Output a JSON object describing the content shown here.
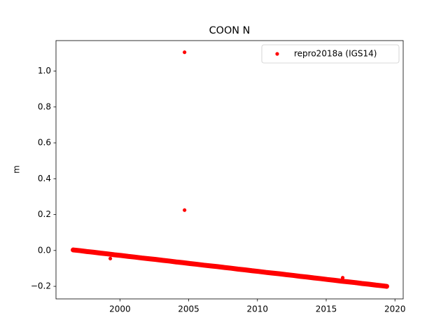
{
  "chart_data": {
    "type": "scatter",
    "title": "COON N",
    "ylabel": "m",
    "series": [
      {
        "name": "repro2018a (IGS14)",
        "color": "#ff0000",
        "x": [
          1996.6,
          1997.1,
          1997.6,
          1998.1,
          1998.6,
          1999.1,
          1999.6,
          2000.1,
          2000.6,
          2001.1,
          2001.6,
          2002.1,
          2002.6,
          2003.1,
          2003.6,
          2004.1,
          2004.6,
          2005.1,
          2005.6,
          2006.1,
          2006.6,
          2007.1,
          2007.6,
          2008.1,
          2008.6,
          2009.1,
          2009.6,
          2010.1,
          2010.6,
          2011.1,
          2011.6,
          2012.1,
          2012.6,
          2013.1,
          2013.6,
          2014.1,
          2014.6,
          2015.1,
          2015.6,
          2016.1,
          2016.6,
          2017.1,
          2017.6,
          2018.1,
          2018.6,
          2019.1,
          2019.4,
          2004.7,
          2004.7,
          1999.3,
          2016.2
        ],
        "values": [
          0.003,
          -0.001,
          -0.006,
          -0.01,
          -0.015,
          -0.019,
          -0.024,
          -0.028,
          -0.033,
          -0.037,
          -0.042,
          -0.046,
          -0.05,
          -0.055,
          -0.059,
          -0.064,
          -0.068,
          -0.073,
          -0.077,
          -0.082,
          -0.086,
          -0.09,
          -0.095,
          -0.099,
          -0.104,
          -0.108,
          -0.113,
          -0.117,
          -0.122,
          -0.126,
          -0.13,
          -0.135,
          -0.139,
          -0.144,
          -0.148,
          -0.153,
          -0.157,
          -0.162,
          -0.166,
          -0.171,
          -0.175,
          -0.179,
          -0.184,
          -0.188,
          -0.193,
          -0.197,
          -0.2,
          1.105,
          0.225,
          -0.045,
          -0.152
        ]
      }
    ],
    "trend_count": 47,
    "xlim": [
      1995.35,
      2020.6
    ],
    "ylim": [
      -0.27,
      1.17
    ],
    "xticks": [
      2000,
      2005,
      2010,
      2015,
      2020
    ],
    "yticks": [
      {
        "value": -0.2,
        "label": "−0.2"
      },
      {
        "value": 0,
        "label": "0.0"
      },
      0.2,
      0.4,
      0.6,
      0.8,
      {
        "value": 1,
        "label": "1.0"
      }
    ],
    "legend": "upper right"
  }
}
